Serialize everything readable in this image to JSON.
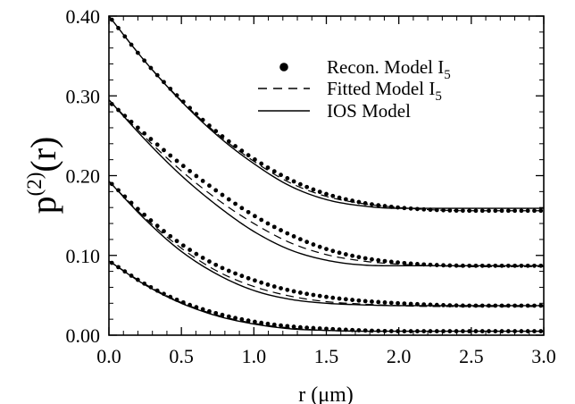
{
  "chart_data": {
    "type": "line",
    "xlabel": "r (μm)",
    "ylabel_base": "p",
    "ylabel_sup": "(2)",
    "ylabel_tail": "(r)",
    "xlim": [
      0.0,
      3.0
    ],
    "ylim": [
      0.0,
      0.4
    ],
    "x_ticks": [
      "0.0",
      "0.5",
      "1.0",
      "1.5",
      "2.0",
      "2.5",
      "3.0"
    ],
    "y_ticks": [
      "0.00",
      "0.10",
      "0.20",
      "0.30",
      "0.40"
    ],
    "grid": false,
    "legend_position": "top-right",
    "legend": [
      {
        "label": "Recon. Model I",
        "sub": "5",
        "style": "dots"
      },
      {
        "label": "Fitted Model I",
        "sub": "5",
        "style": "dashed"
      },
      {
        "label": "IOS Model",
        "sub": "",
        "style": "solid"
      }
    ],
    "x": [
      0.0,
      0.25,
      0.5,
      0.75,
      1.0,
      1.25,
      1.5,
      1.75,
      2.0,
      2.25,
      2.5,
      2.75,
      3.0
    ],
    "curves": [
      {
        "ios": [
          0.4,
          0.343,
          0.293,
          0.25,
          0.215,
          0.187,
          0.17,
          0.162,
          0.159,
          0.159,
          0.159,
          0.159,
          0.159
        ],
        "fitted": [
          0.4,
          0.343,
          0.294,
          0.252,
          0.218,
          0.191,
          0.174,
          0.165,
          0.16,
          0.157,
          0.156,
          0.156,
          0.156
        ],
        "recon": [
          0.4,
          0.343,
          0.295,
          0.254,
          0.221,
          0.195,
          0.177,
          0.166,
          0.16,
          0.157,
          0.156,
          0.156,
          0.156
        ]
      },
      {
        "ios": [
          0.295,
          0.245,
          0.2,
          0.162,
          0.13,
          0.107,
          0.094,
          0.088,
          0.087,
          0.087,
          0.087,
          0.087,
          0.087
        ],
        "fitted": [
          0.295,
          0.248,
          0.206,
          0.17,
          0.14,
          0.116,
          0.101,
          0.093,
          0.089,
          0.087,
          0.086,
          0.086,
          0.086
        ],
        "recon": [
          0.293,
          0.252,
          0.214,
          0.18,
          0.15,
          0.126,
          0.108,
          0.097,
          0.091,
          0.088,
          0.087,
          0.087,
          0.087
        ]
      },
      {
        "ios": [
          0.193,
          0.145,
          0.105,
          0.076,
          0.056,
          0.045,
          0.04,
          0.038,
          0.037,
          0.037,
          0.037,
          0.037,
          0.037
        ],
        "fitted": [
          0.193,
          0.147,
          0.109,
          0.08,
          0.061,
          0.049,
          0.042,
          0.039,
          0.037,
          0.036,
          0.036,
          0.036,
          0.036
        ],
        "recon": [
          0.193,
          0.15,
          0.114,
          0.087,
          0.069,
          0.056,
          0.048,
          0.043,
          0.04,
          0.038,
          0.037,
          0.037,
          0.037
        ]
      },
      {
        "ios": [
          0.093,
          0.063,
          0.04,
          0.024,
          0.014,
          0.008,
          0.006,
          0.005,
          0.005,
          0.005,
          0.005,
          0.005,
          0.005
        ],
        "fitted": [
          0.093,
          0.064,
          0.041,
          0.025,
          0.015,
          0.009,
          0.006,
          0.005,
          0.005,
          0.005,
          0.005,
          0.005,
          0.005
        ],
        "recon": [
          0.093,
          0.064,
          0.042,
          0.027,
          0.017,
          0.011,
          0.008,
          0.006,
          0.005,
          0.005,
          0.005,
          0.005,
          0.005
        ]
      }
    ]
  }
}
